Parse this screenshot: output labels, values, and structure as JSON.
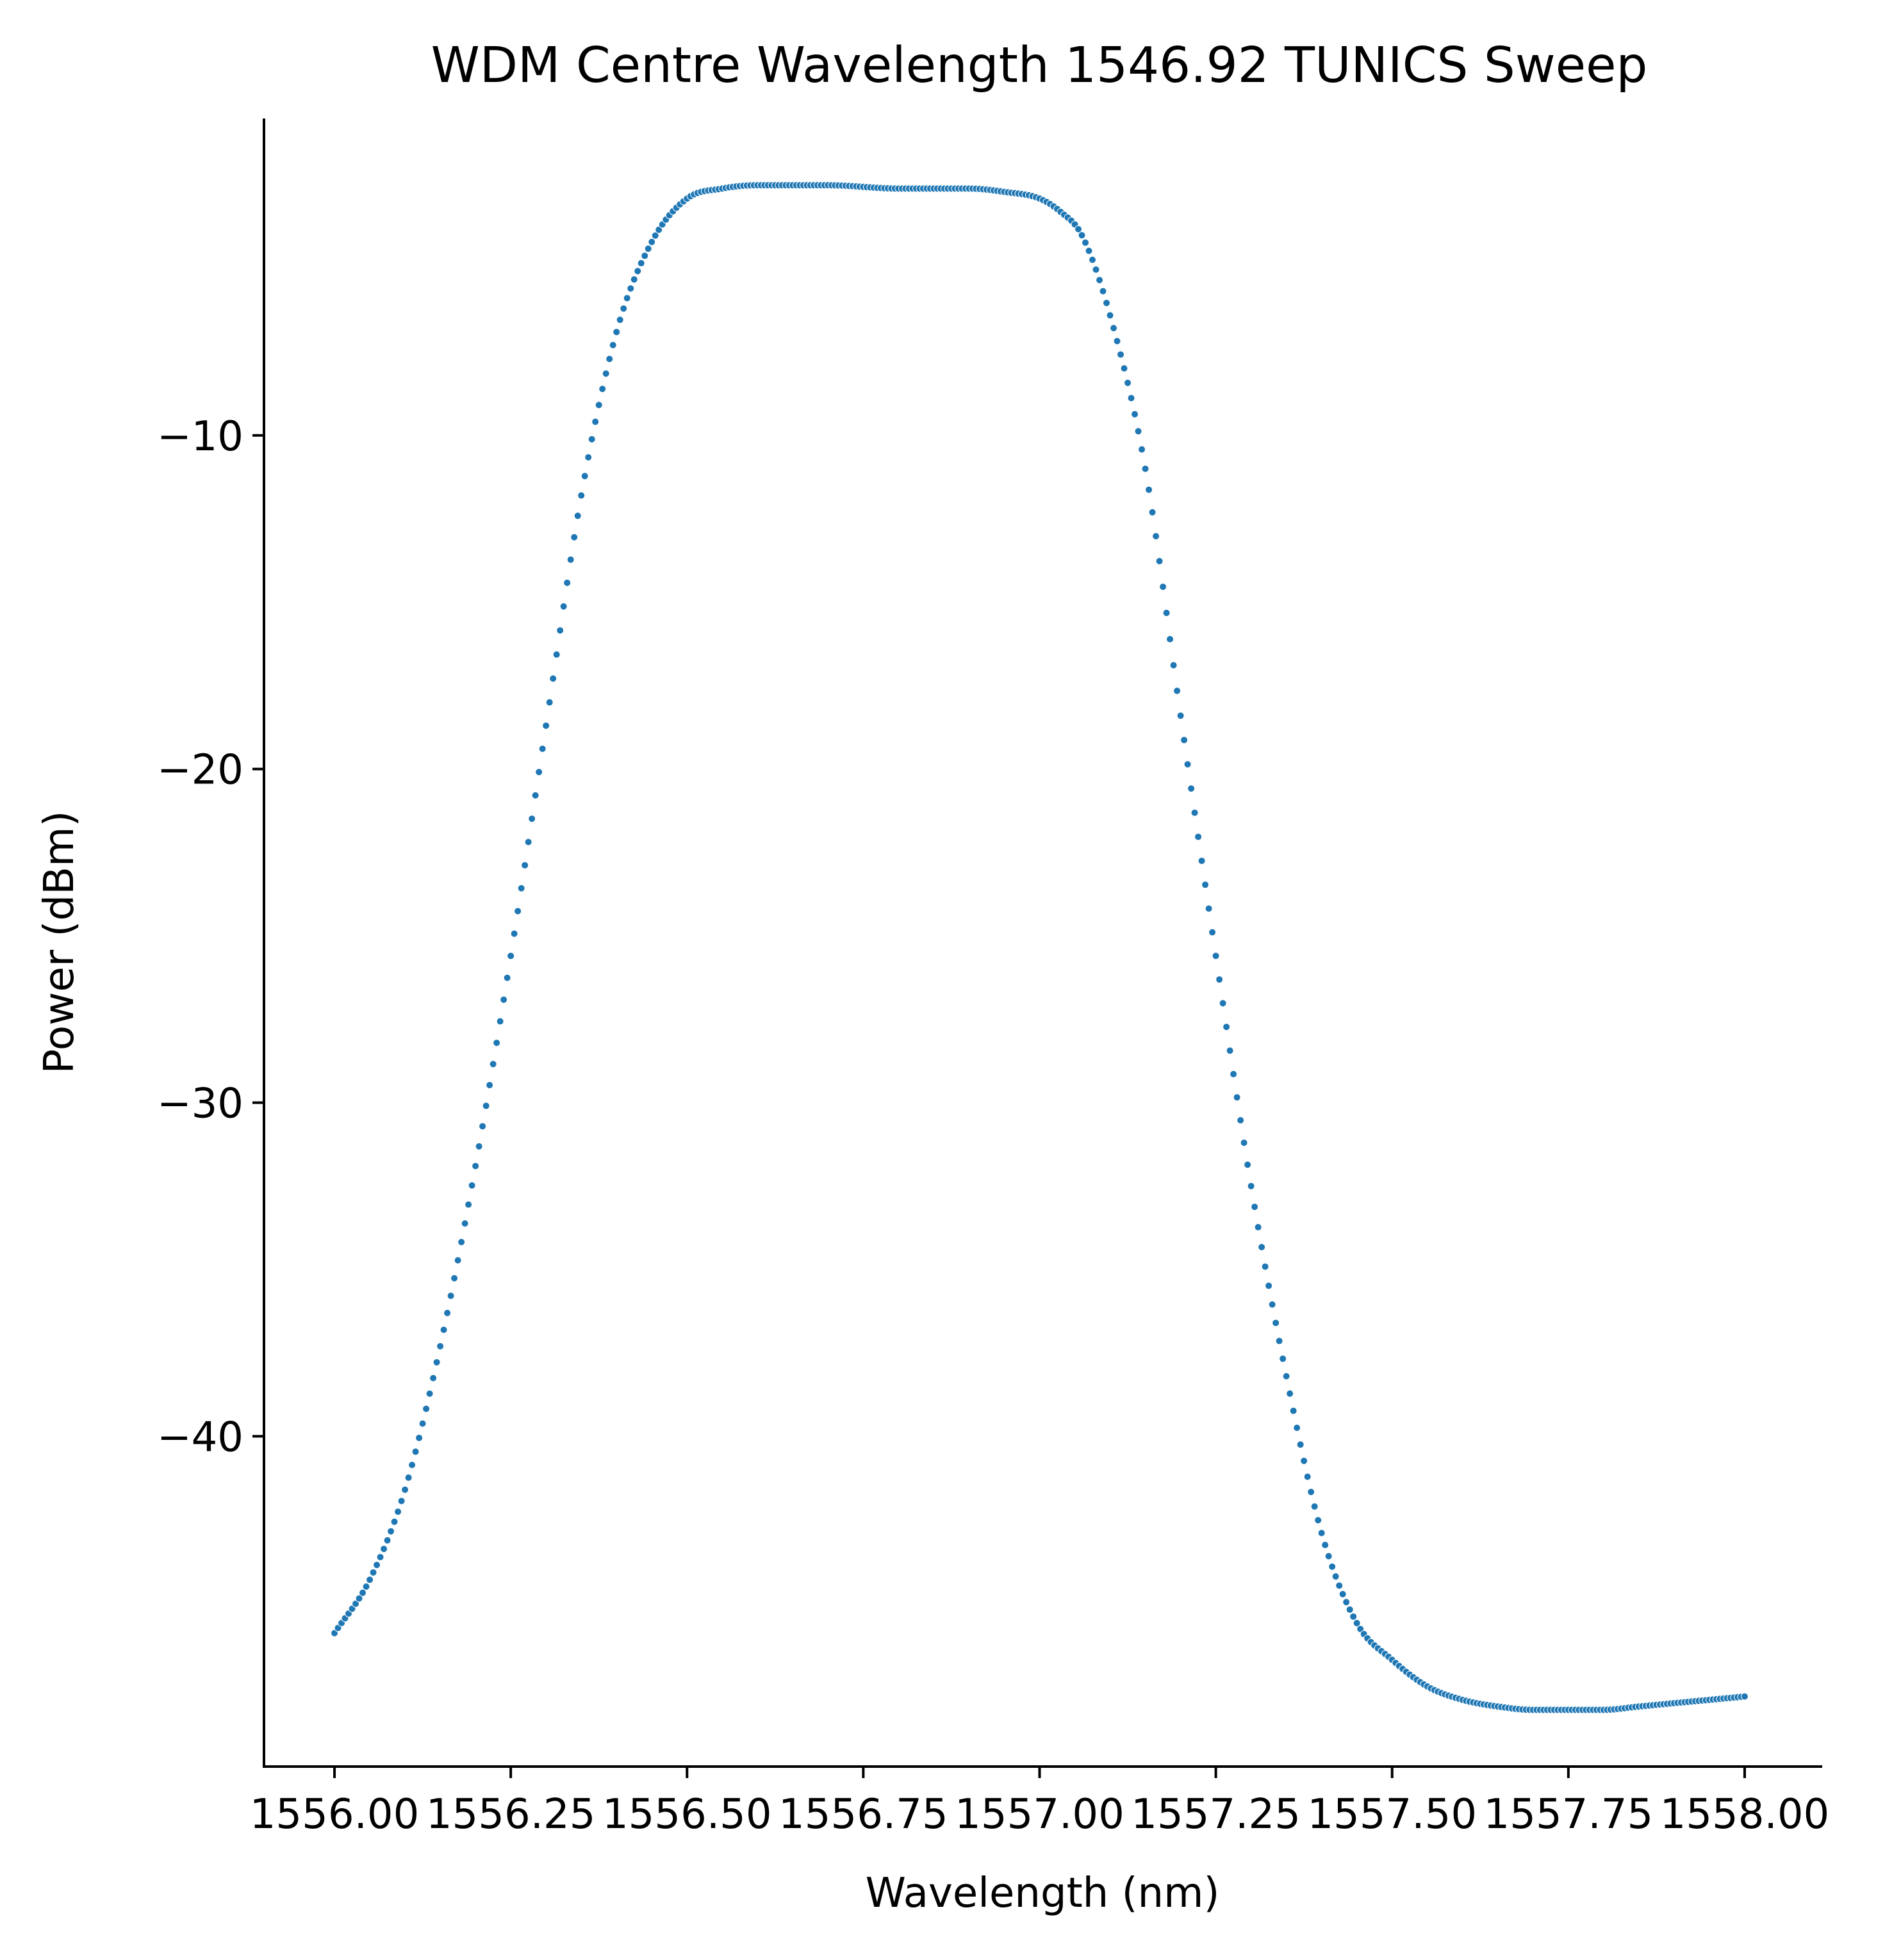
{
  "chart_data": {
    "type": "scatter",
    "title": "WDM Centre Wavelength 1546.92 TUNICS Sweep",
    "xlabel": "Wavelength (nm)",
    "ylabel": "Power (dBm)",
    "xlim": [
      1555.9,
      1558.11
    ],
    "ylim": [
      -49.9,
      -0.5
    ],
    "x_ticks": [
      1556.0,
      1556.25,
      1556.5,
      1556.75,
      1557.0,
      1557.25,
      1557.5,
      1557.75,
      1558.0
    ],
    "x_tick_labels": [
      "1556.00",
      "1556.25",
      "1556.50",
      "1556.75",
      "1557.00",
      "1557.25",
      "1557.50",
      "1557.75",
      "1558.00"
    ],
    "y_ticks": [
      -10,
      -20,
      -30,
      -40
    ],
    "y_tick_labels": [
      "−10",
      "−20",
      "−30",
      "−40"
    ],
    "grid": false,
    "legend": "none",
    "color": "#1f77b4",
    "series": [
      {
        "x": [
          1556.0,
          1556.05,
          1556.1,
          1556.15,
          1556.2,
          1556.25,
          1556.3,
          1556.35,
          1556.4,
          1556.45,
          1556.5,
          1556.55,
          1556.6,
          1556.7,
          1556.8,
          1556.9,
          1556.95,
          1557.0,
          1557.03,
          1557.06,
          1557.1,
          1557.15,
          1557.2,
          1557.25,
          1557.3,
          1557.35,
          1557.4,
          1557.45,
          1557.5,
          1557.55,
          1557.6,
          1557.65,
          1557.7,
          1557.75,
          1557.8,
          1557.85,
          1557.9,
          1557.95,
          1558.0
        ],
        "y": [
          -45.9,
          -44.3,
          -41.6,
          -37.3,
          -31.9,
          -25.6,
          -18.7,
          -11.8,
          -6.9,
          -4.2,
          -2.9,
          -2.6,
          -2.5,
          -2.5,
          -2.6,
          -2.6,
          -2.7,
          -2.9,
          -3.3,
          -4.0,
          -6.4,
          -11.0,
          -18.4,
          -25.6,
          -32.5,
          -38.2,
          -42.9,
          -45.6,
          -46.7,
          -47.5,
          -47.9,
          -48.1,
          -48.2,
          -48.2,
          -48.2,
          -48.1,
          -48.0,
          -47.9,
          -47.8
        ]
      }
    ]
  }
}
